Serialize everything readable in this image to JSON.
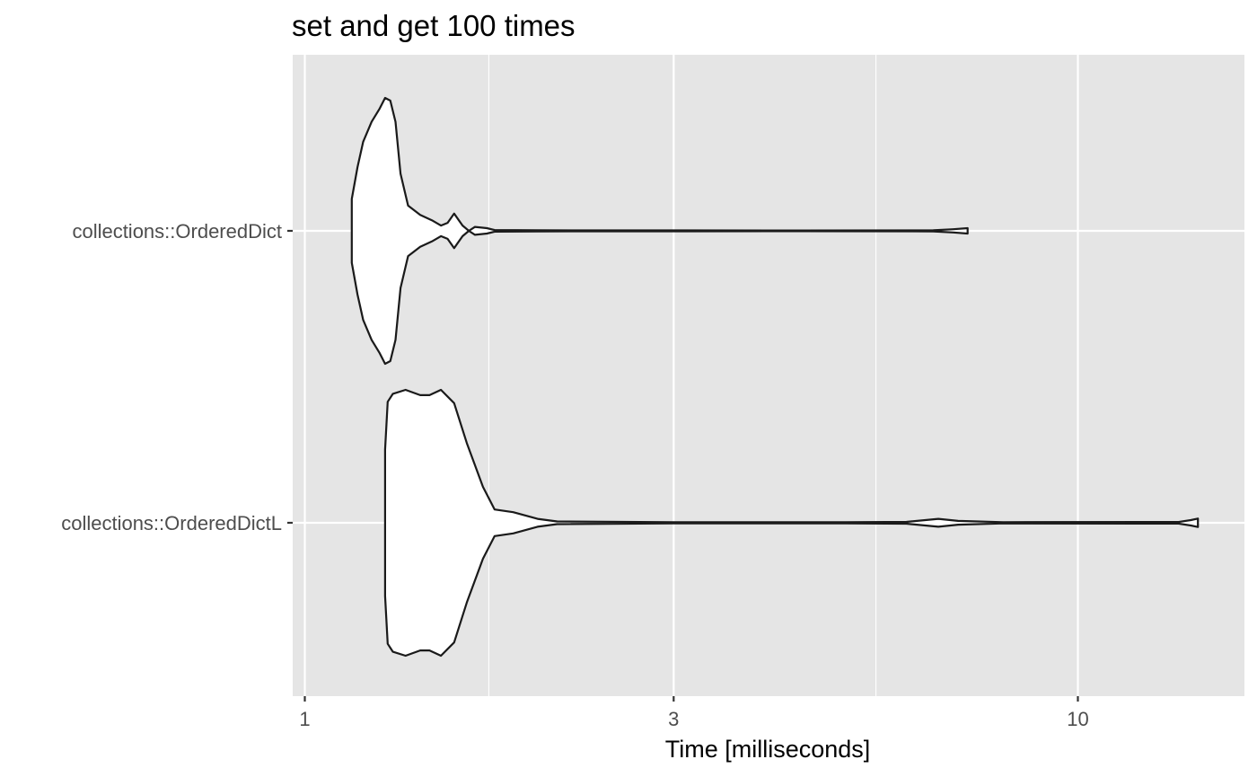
{
  "chart_data": {
    "type": "violin",
    "title": "set and get 100 times",
    "xlabel": "Time [milliseconds]",
    "ylabel": "",
    "x_scale": "log10",
    "xlim": [
      0.98,
      15.0
    ],
    "x_ticks": [
      {
        "value": 1,
        "label": "1"
      },
      {
        "value": 3,
        "label": "3"
      },
      {
        "value": 10,
        "label": "10"
      }
    ],
    "x_minor_ticks": [
      1.73,
      5.48
    ],
    "categories": [
      "collections::OrderedDict",
      "collections::OrderedDictL"
    ],
    "grid": true,
    "legend": "none",
    "series": [
      {
        "category": "collections::OrderedDict",
        "range": [
          1.15,
          7.2
        ],
        "density": [
          [
            1.15,
            0.24
          ],
          [
            1.17,
            0.48
          ],
          [
            1.19,
            0.67
          ],
          [
            1.22,
            0.82
          ],
          [
            1.25,
            0.92
          ],
          [
            1.27,
            1.0
          ],
          [
            1.29,
            0.98
          ],
          [
            1.31,
            0.82
          ],
          [
            1.33,
            0.43
          ],
          [
            1.36,
            0.19
          ],
          [
            1.41,
            0.12
          ],
          [
            1.46,
            0.08
          ],
          [
            1.5,
            0.04
          ],
          [
            1.53,
            0.06
          ],
          [
            1.56,
            0.13
          ],
          [
            1.6,
            0.04
          ],
          [
            1.63,
            0.0
          ],
          [
            1.66,
            0.03
          ],
          [
            1.72,
            0.02
          ],
          [
            1.76,
            0.006
          ],
          [
            2.0,
            0.004
          ],
          [
            4.0,
            0.003
          ],
          [
            6.5,
            0.004
          ],
          [
            6.9,
            0.012
          ],
          [
            7.2,
            0.02
          ]
        ]
      },
      {
        "category": "collections::OrderedDictL",
        "range": [
          1.27,
          14.3
        ],
        "density": [
          [
            1.27,
            0.55
          ],
          [
            1.28,
            0.91
          ],
          [
            1.3,
            0.97
          ],
          [
            1.35,
            1.0
          ],
          [
            1.41,
            0.96
          ],
          [
            1.45,
            0.96
          ],
          [
            1.5,
            1.0
          ],
          [
            1.56,
            0.9
          ],
          [
            1.62,
            0.6
          ],
          [
            1.7,
            0.27
          ],
          [
            1.76,
            0.1
          ],
          [
            1.86,
            0.08
          ],
          [
            2.0,
            0.03
          ],
          [
            2.12,
            0.01
          ],
          [
            3.0,
            0.005
          ],
          [
            5.0,
            0.005
          ],
          [
            6.0,
            0.007
          ],
          [
            6.6,
            0.03
          ],
          [
            7.0,
            0.014
          ],
          [
            8.0,
            0.005
          ],
          [
            13.5,
            0.006
          ],
          [
            14.0,
            0.02
          ],
          [
            14.3,
            0.032
          ]
        ]
      }
    ]
  }
}
